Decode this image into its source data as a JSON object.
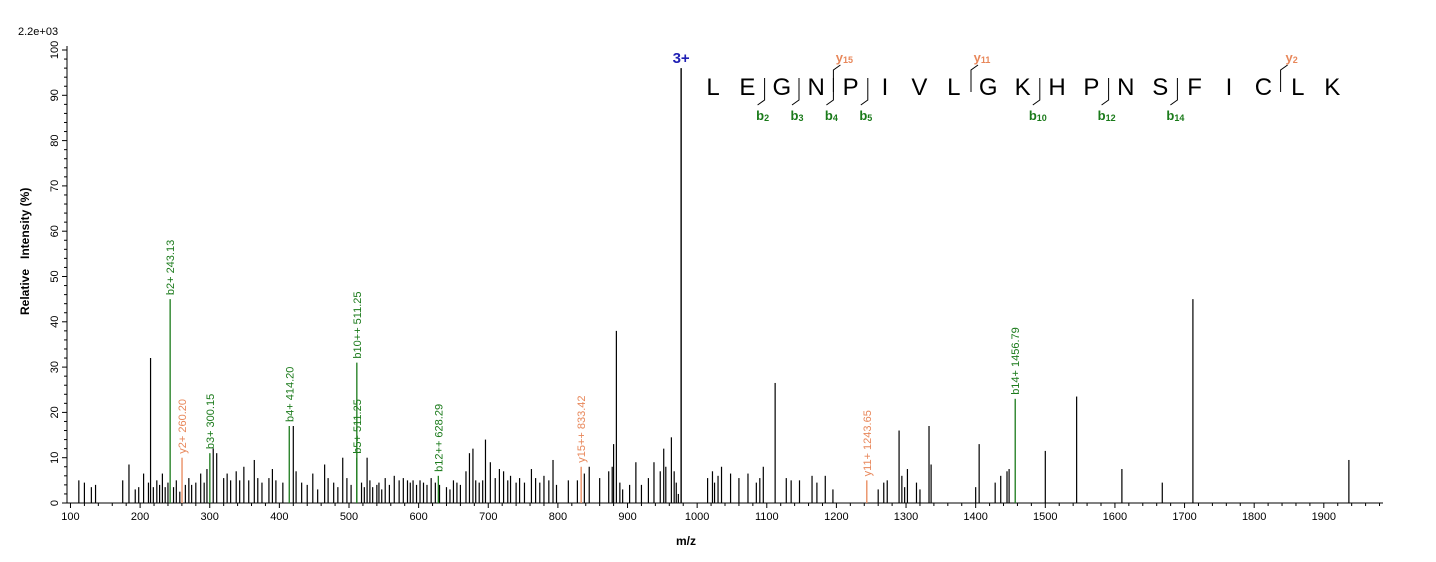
{
  "chart_data": {
    "type": "bar",
    "title": "",
    "scale_label": "2.2e+03",
    "xlabel": "m/z",
    "ylabel_words": [
      "Relative",
      "Intensity (%)"
    ],
    "xlim": [
      95,
      1985
    ],
    "ylim": [
      0,
      100
    ],
    "x_ticks": [
      100,
      200,
      300,
      400,
      500,
      600,
      700,
      800,
      900,
      1000,
      1100,
      1200,
      1300,
      1400,
      1500,
      1600,
      1700,
      1800,
      1900
    ],
    "y_ticks": [
      0,
      10,
      20,
      30,
      40,
      50,
      60,
      70,
      80,
      90,
      100
    ],
    "colors": {
      "b_ion": "#1a7a1a",
      "y_ion": "#e8875a",
      "charge": "#1f1fb4",
      "peak": "#000000"
    },
    "precursor": {
      "mz": 977,
      "intensity": 96,
      "label": "3+"
    },
    "annotated_peaks": [
      {
        "mz": 243.13,
        "intensity": 45,
        "label": "b2+ 243.13",
        "ion": "b"
      },
      {
        "mz": 260.2,
        "intensity": 10,
        "label": "y2+ 260.20",
        "ion": "y"
      },
      {
        "mz": 300.15,
        "intensity": 11,
        "label": "b3+ 300.15",
        "ion": "b"
      },
      {
        "mz": 414.2,
        "intensity": 17,
        "label": "b4+ 414.20",
        "ion": "b"
      },
      {
        "mz": 511.25,
        "intensity": 10,
        "label": "b5+ 511.25",
        "ion": "b"
      },
      {
        "mz": 511.25,
        "intensity": 31,
        "label": "b10++ 511.25",
        "ion": "b"
      },
      {
        "mz": 628.29,
        "intensity": 6,
        "label": "b12++ 628.29",
        "ion": "b"
      },
      {
        "mz": 833.42,
        "intensity": 8,
        "label": "y15++ 833.42",
        "ion": "y"
      },
      {
        "mz": 1243.65,
        "intensity": 5,
        "label": "y11+ 1243.65",
        "ion": "y"
      },
      {
        "mz": 1456.79,
        "intensity": 23,
        "label": "b14+ 1456.79",
        "ion": "b"
      }
    ],
    "peaks": [
      [
        112,
        5
      ],
      [
        120,
        4.5
      ],
      [
        130,
        3.5
      ],
      [
        136,
        4
      ],
      [
        175,
        5
      ],
      [
        184,
        8.5
      ],
      [
        193,
        3
      ],
      [
        198,
        3.5
      ],
      [
        205,
        6.5
      ],
      [
        212,
        4.5
      ],
      [
        215,
        32
      ],
      [
        219,
        3.5
      ],
      [
        224,
        5
      ],
      [
        228,
        4
      ],
      [
        232,
        6.5
      ],
      [
        236,
        3.5
      ],
      [
        240,
        4.5
      ],
      [
        248,
        3.5
      ],
      [
        252,
        5
      ],
      [
        257,
        2.5
      ],
      [
        265,
        4
      ],
      [
        270,
        5.5
      ],
      [
        274,
        4
      ],
      [
        280,
        4.5
      ],
      [
        287,
        6.5
      ],
      [
        292,
        4.5
      ],
      [
        296,
        7.5
      ],
      [
        305,
        12
      ],
      [
        310,
        11
      ],
      [
        320,
        5.5
      ],
      [
        325,
        6.5
      ],
      [
        330,
        5
      ],
      [
        338,
        7
      ],
      [
        343,
        5
      ],
      [
        349,
        8
      ],
      [
        356,
        5
      ],
      [
        364,
        9.5
      ],
      [
        369,
        5.5
      ],
      [
        375,
        4.5
      ],
      [
        385,
        5.5
      ],
      [
        390,
        7.5
      ],
      [
        395,
        5
      ],
      [
        405,
        4.5
      ],
      [
        420,
        17
      ],
      [
        424,
        7
      ],
      [
        432,
        4.5
      ],
      [
        440,
        4
      ],
      [
        448,
        6.5
      ],
      [
        455,
        3
      ],
      [
        465,
        8.5
      ],
      [
        470,
        5.5
      ],
      [
        478,
        4.5
      ],
      [
        484,
        3.5
      ],
      [
        491,
        10
      ],
      [
        497,
        5.5
      ],
      [
        503,
        4
      ],
      [
        518,
        4.5
      ],
      [
        522,
        3.5
      ],
      [
        526,
        10
      ],
      [
        530,
        5
      ],
      [
        534,
        3.5
      ],
      [
        540,
        4
      ],
      [
        543,
        4.5
      ],
      [
        547,
        3
      ],
      [
        552,
        5.5
      ],
      [
        558,
        4
      ],
      [
        565,
        6
      ],
      [
        572,
        5
      ],
      [
        578,
        5.5
      ],
      [
        584,
        5
      ],
      [
        588,
        4.5
      ],
      [
        592,
        5
      ],
      [
        597,
        4
      ],
      [
        602,
        5
      ],
      [
        607,
        4.5
      ],
      [
        612,
        4
      ],
      [
        618,
        5.5
      ],
      [
        624,
        4.5
      ],
      [
        630,
        4
      ],
      [
        640,
        3.5
      ],
      [
        645,
        3
      ],
      [
        650,
        5
      ],
      [
        655,
        4.5
      ],
      [
        660,
        4
      ],
      [
        668,
        7
      ],
      [
        673,
        11
      ],
      [
        678,
        12
      ],
      [
        682,
        5
      ],
      [
        687,
        4.5
      ],
      [
        692,
        5
      ],
      [
        696,
        14
      ],
      [
        703,
        9
      ],
      [
        710,
        5.5
      ],
      [
        716,
        7.5
      ],
      [
        722,
        7
      ],
      [
        728,
        5
      ],
      [
        732,
        6
      ],
      [
        740,
        4.5
      ],
      [
        745,
        5.5
      ],
      [
        752,
        4.5
      ],
      [
        762,
        7.5
      ],
      [
        768,
        5.5
      ],
      [
        774,
        4.5
      ],
      [
        780,
        6
      ],
      [
        787,
        5
      ],
      [
        793,
        9.5
      ],
      [
        798,
        4
      ],
      [
        815,
        5
      ],
      [
        828,
        5
      ],
      [
        838,
        6.5
      ],
      [
        845,
        8
      ],
      [
        860,
        5.5
      ],
      [
        873,
        7
      ],
      [
        878,
        8
      ],
      [
        880,
        13
      ],
      [
        884,
        38
      ],
      [
        889,
        4.5
      ],
      [
        893,
        3
      ],
      [
        903,
        4
      ],
      [
        912,
        9
      ],
      [
        920,
        4
      ],
      [
        930,
        5.5
      ],
      [
        938,
        9
      ],
      [
        947,
        7
      ],
      [
        952,
        12
      ],
      [
        955,
        8
      ],
      [
        963,
        14.5
      ],
      [
        967,
        7
      ],
      [
        970,
        4.5
      ],
      [
        973,
        2
      ],
      [
        1015,
        5.5
      ],
      [
        1022,
        7
      ],
      [
        1025,
        4.5
      ],
      [
        1030,
        6
      ],
      [
        1035,
        8
      ],
      [
        1048,
        6.5
      ],
      [
        1060,
        5.5
      ],
      [
        1073,
        6.5
      ],
      [
        1085,
        4.5
      ],
      [
        1090,
        5.5
      ],
      [
        1095,
        8
      ],
      [
        1112,
        26.5
      ],
      [
        1128,
        5.5
      ],
      [
        1135,
        5
      ],
      [
        1147,
        5
      ],
      [
        1165,
        6
      ],
      [
        1172,
        4.5
      ],
      [
        1184,
        6
      ],
      [
        1195,
        3
      ],
      [
        1260,
        3
      ],
      [
        1268,
        4.5
      ],
      [
        1273,
        5
      ],
      [
        1290,
        16
      ],
      [
        1294,
        6
      ],
      [
        1298,
        3.5
      ],
      [
        1302,
        7.5
      ],
      [
        1315,
        4.5
      ],
      [
        1320,
        3
      ],
      [
        1333,
        17
      ],
      [
        1336,
        8.5
      ],
      [
        1400,
        3.5
      ],
      [
        1405,
        13
      ],
      [
        1428,
        4.5
      ],
      [
        1436,
        6
      ],
      [
        1445,
        7
      ],
      [
        1448,
        7.5
      ],
      [
        1500,
        11.5
      ],
      [
        1545,
        23.5
      ],
      [
        1610,
        7.5
      ],
      [
        1668,
        4.5
      ],
      [
        1712,
        45
      ],
      [
        1936,
        9.5
      ]
    ]
  },
  "sequence": {
    "residues": [
      "L",
      "E",
      "G",
      "N",
      "P",
      "I",
      "V",
      "L",
      "G",
      "K",
      "H",
      "P",
      "N",
      "S",
      "F",
      "I",
      "C",
      "L",
      "K"
    ],
    "b_ions": [
      {
        "after": 2,
        "label": "b",
        "sub": "2"
      },
      {
        "after": 3,
        "label": "b",
        "sub": "3"
      },
      {
        "after": 4,
        "label": "b",
        "sub": "4"
      },
      {
        "after": 5,
        "label": "b",
        "sub": "5"
      },
      {
        "after": 10,
        "label": "b",
        "sub": "10"
      },
      {
        "after": 12,
        "label": "b",
        "sub": "12"
      },
      {
        "after": 14,
        "label": "b",
        "sub": "14"
      }
    ],
    "y_ions": [
      {
        "after": 4,
        "label": "y",
        "sub": "15"
      },
      {
        "after": 8,
        "label": "y",
        "sub": "11"
      },
      {
        "after": 17,
        "label": "y",
        "sub": "2"
      }
    ]
  }
}
